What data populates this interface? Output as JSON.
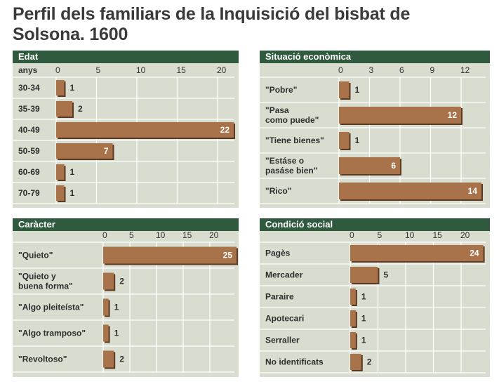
{
  "title": "Perfil dels familiars de la Inquisició del bisbat de Solsona. 1600",
  "colors": {
    "header_bg": "#2f5a3e",
    "header_text": "#ffffff",
    "panel_bg": "#d9ddd0",
    "bar": "#a8724a",
    "bar_shadow": "#5a3a22",
    "grid": "#ffffff",
    "value_on_bar": "#ffffff",
    "value_off_bar": "#2e2e2e"
  },
  "chart_data": [
    {
      "type": "bar",
      "orientation": "horizontal",
      "title": "Edat",
      "unit_label": "anys",
      "categories": [
        "30-34",
        "35-39",
        "40-49",
        "50-59",
        "60-69",
        "70-79"
      ],
      "values": [
        1,
        2,
        22,
        7,
        1,
        1
      ],
      "xlim": [
        0,
        22
      ],
      "xticks": [
        0,
        5,
        10,
        15,
        20
      ],
      "grid": true
    },
    {
      "type": "bar",
      "orientation": "horizontal",
      "title": "Situació econòmica",
      "unit_label": "",
      "categories": [
        "\"Pobre\"",
        "\"Pasa\ncomo puede\"",
        "\"Tiene bienes\"",
        "\"Estáse o\npasáse bien\"",
        "\"Rico\""
      ],
      "values": [
        1,
        12,
        1,
        6,
        14
      ],
      "xlim": [
        0,
        14
      ],
      "xticks": [
        0,
        3,
        6,
        9,
        12
      ],
      "grid": true
    },
    {
      "type": "bar",
      "orientation": "horizontal",
      "title": "Caràcter",
      "unit_label": "",
      "categories": [
        "\"Quieto\"",
        "\"Quieto y\nbuena forma\"",
        "\"Algo pleiteísta\"",
        "\"Algo tramposo\"",
        "\"Revoltoso\""
      ],
      "values": [
        25,
        2,
        1,
        1,
        2
      ],
      "xlim": [
        0,
        25
      ],
      "xticks": [
        0,
        5,
        10,
        15,
        20
      ],
      "grid": true
    },
    {
      "type": "bar",
      "orientation": "horizontal",
      "title": "Condició social",
      "unit_label": "",
      "categories": [
        "Pagès",
        "Mercader",
        "Paraire",
        "Apotecari",
        "Serraller",
        "No identificats"
      ],
      "values": [
        24,
        5,
        1,
        1,
        1,
        2
      ],
      "xlim": [
        0,
        24
      ],
      "xticks": [
        0,
        5,
        10,
        15,
        20
      ],
      "grid": true
    }
  ]
}
